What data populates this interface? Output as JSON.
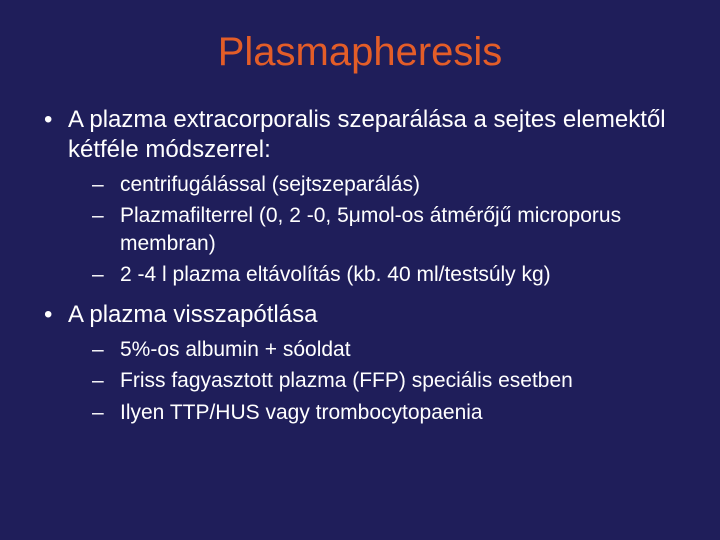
{
  "slide": {
    "title": "Plasmapheresis",
    "background_color": "#1f1e5a",
    "title_color": "#e35d28",
    "text_color": "#ffffff",
    "title_fontsize": 40,
    "level1_fontsize": 24,
    "level2_fontsize": 21,
    "bullets": [
      {
        "text": "A plazma extracorporalis szeparálása a sejtes elemektől kétféle módszerrel:",
        "sub": [
          "centrifugálással (sejtszeparálás)",
          "Plazmafilterrel (0, 2 -0, 5μmol-os átmérőjű microporus membran)",
          "2 -4 l plazma eltávolítás (kb. 40 ml/testsúly kg)"
        ]
      },
      {
        "text": "A plazma visszapótlása",
        "sub": [
          "5%-os albumin + sóoldat",
          "Friss fagyasztott plazma (FFP) speciális esetben",
          "Ilyen TTP/HUS vagy trombocytopaenia"
        ]
      }
    ]
  }
}
